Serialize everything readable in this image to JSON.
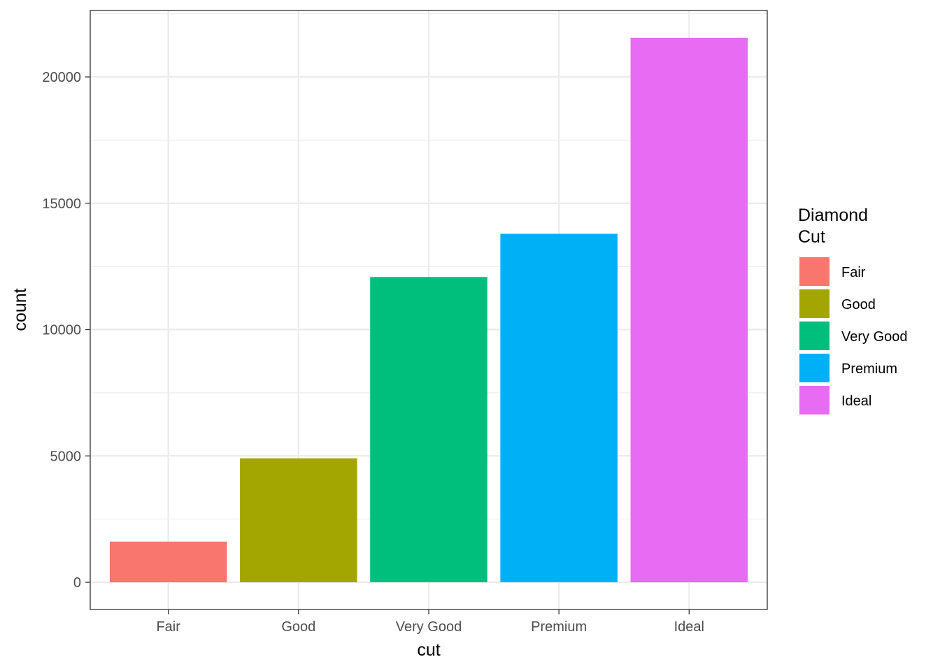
{
  "chart_data": {
    "type": "bar",
    "categories": [
      "Fair",
      "Good",
      "Very Good",
      "Premium",
      "Ideal"
    ],
    "values": [
      1610,
      4906,
      12082,
      13791,
      21551
    ],
    "colors": [
      "#F8766D",
      "#A3A500",
      "#00BF7D",
      "#00B0F6",
      "#E76BF3"
    ],
    "xlabel": "cut",
    "ylabel": "count",
    "ylim": [
      -1078,
      22629
    ],
    "yticks": [
      0,
      5000,
      10000,
      15000,
      20000
    ],
    "ytick_labels": [
      "0",
      "5000",
      "10000",
      "15000",
      "20000"
    ],
    "grid": true,
    "legend": {
      "title_lines": [
        "Diamond",
        "Cut"
      ],
      "placement": "right",
      "entries": [
        "Fair",
        "Good",
        "Very Good",
        "Premium",
        "Ideal"
      ]
    }
  }
}
